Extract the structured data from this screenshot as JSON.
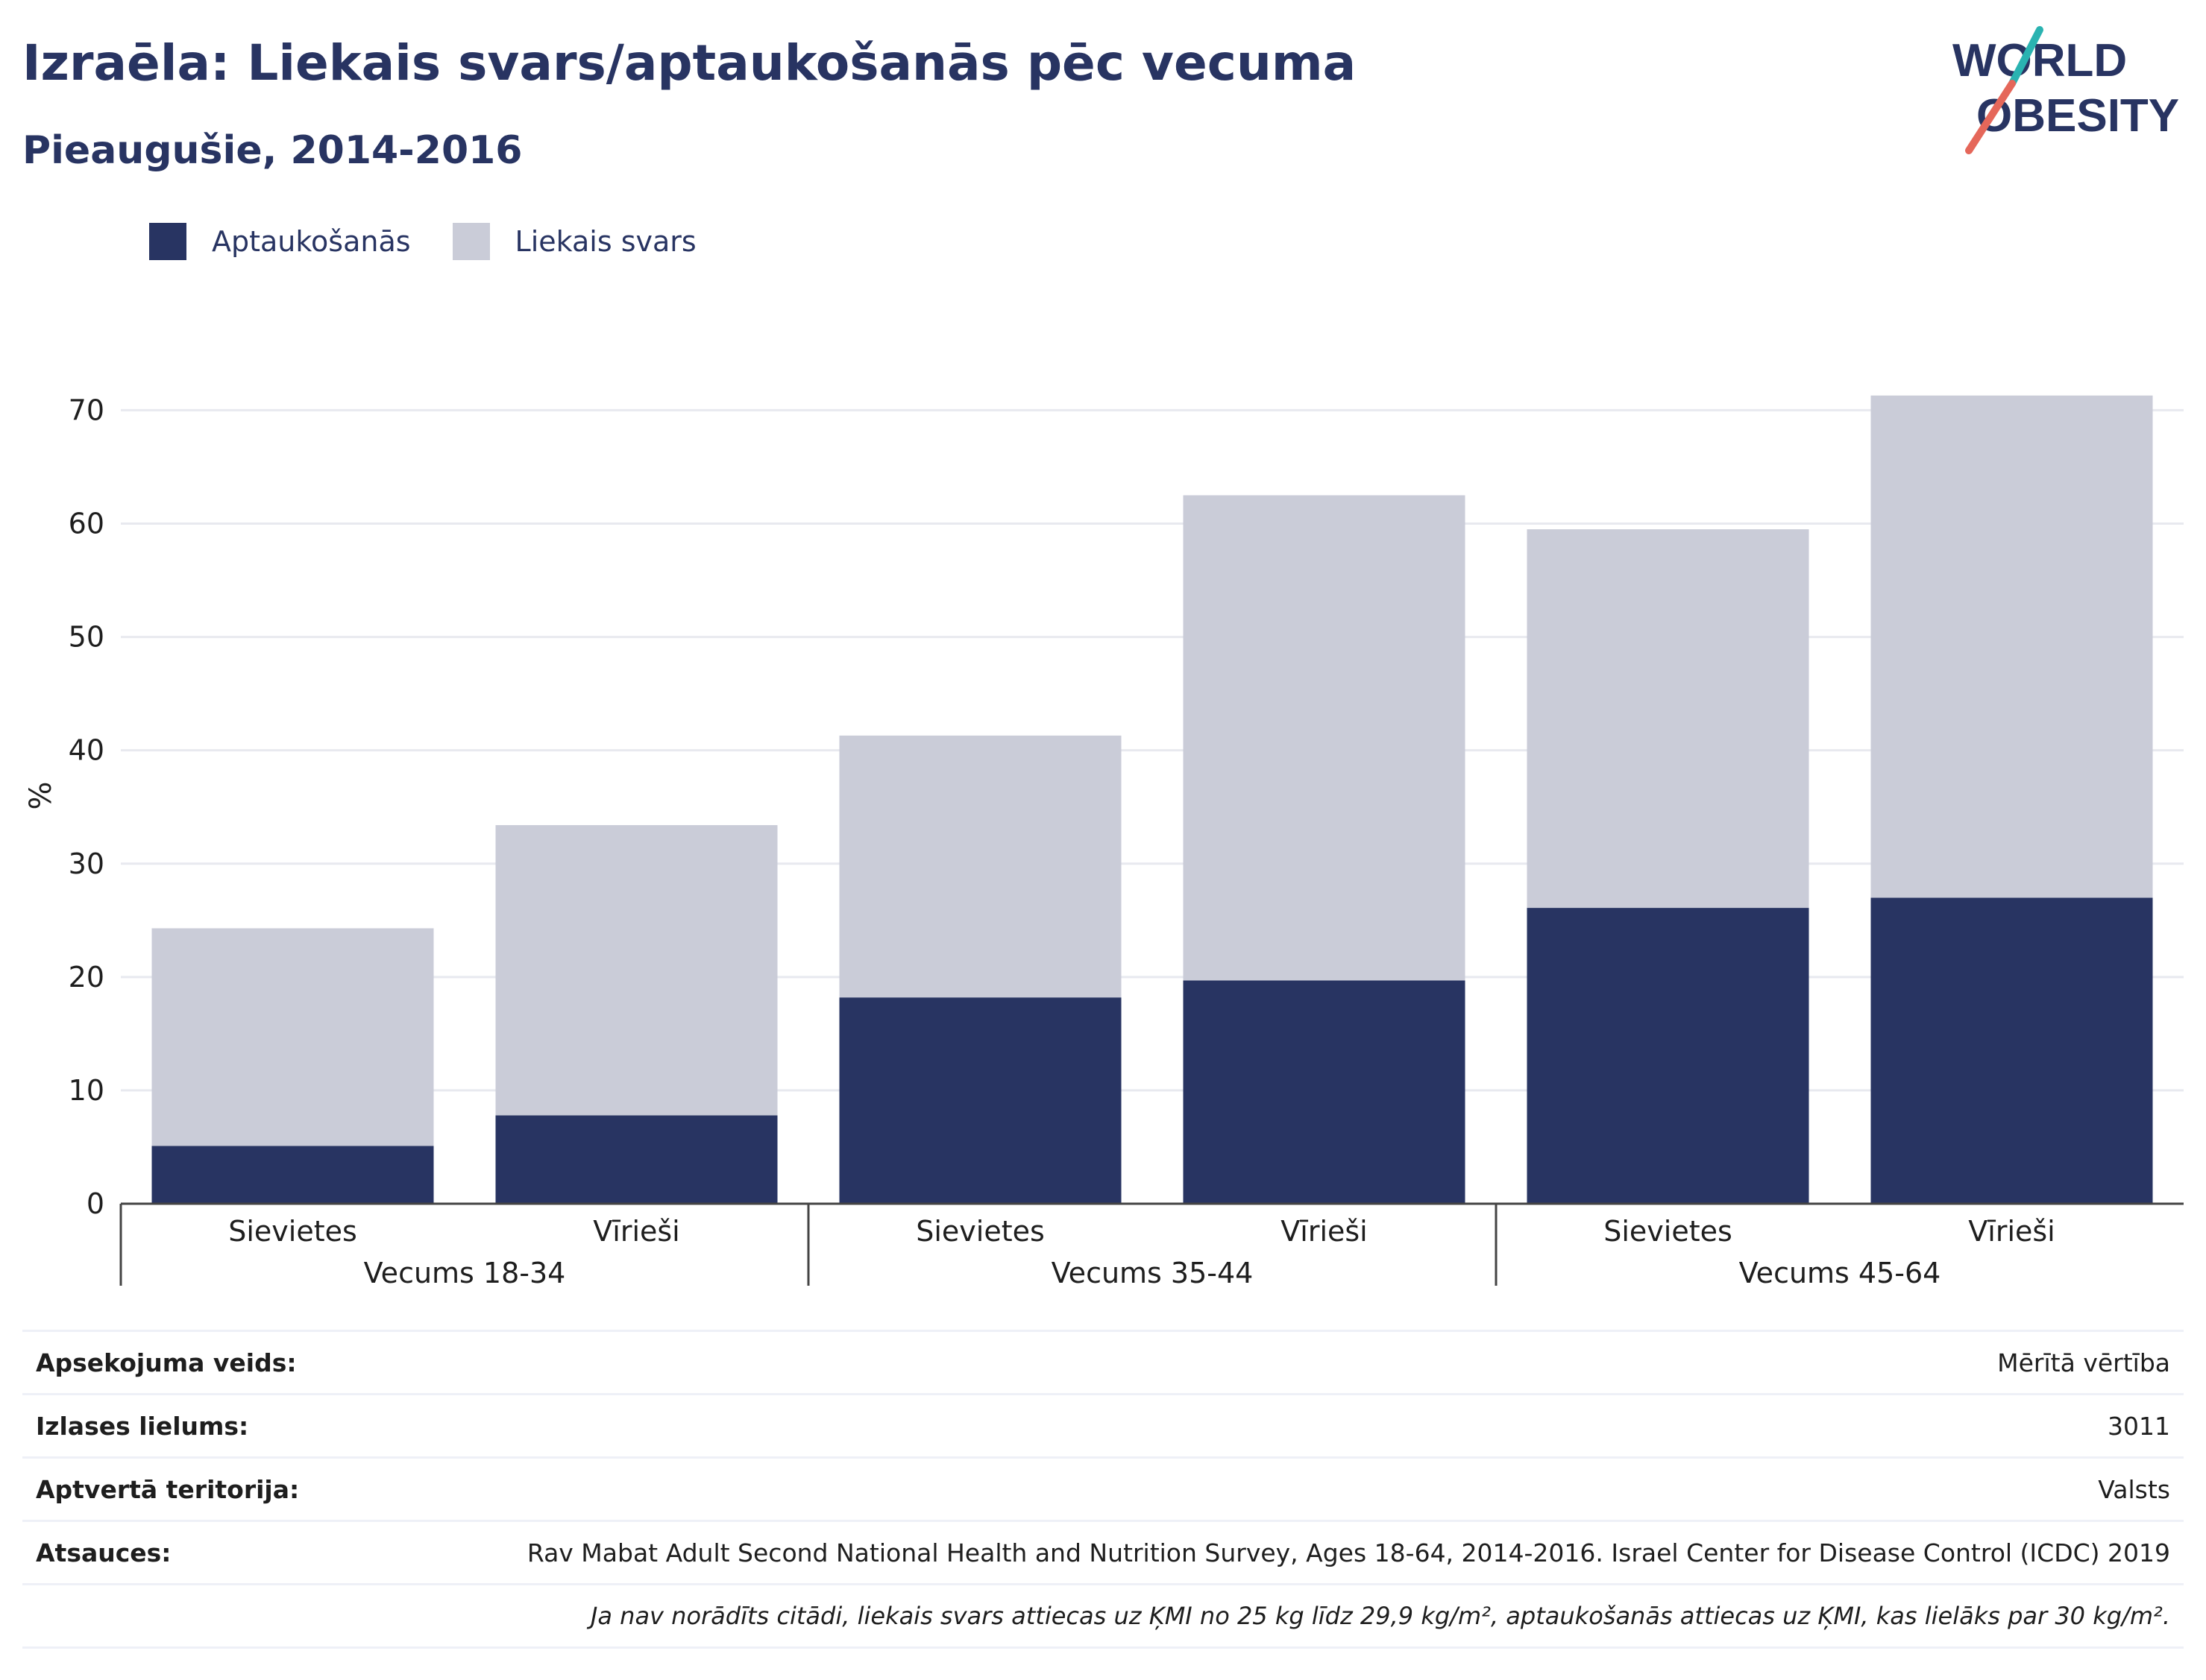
{
  "header": {
    "title": "Izraēla: Liekais svars/aptaukošanās pēc vecuma",
    "subtitle": "Pieaugušie, 2014-2016"
  },
  "logo": {
    "line1": "WORLD",
    "line2": "OBESITY"
  },
  "colors": {
    "obesity": "#283462",
    "overweight": "#caccd8",
    "grid": "#e8e9ef",
    "accent_teal": "#2ab3b1",
    "accent_coral": "#e5675a"
  },
  "legend": [
    {
      "label": "Aptaukošanās",
      "color": "#283462"
    },
    {
      "label": "Liekais svars",
      "color": "#caccd8"
    }
  ],
  "chart_data": {
    "type": "bar",
    "stacked": true,
    "ylabel": "%",
    "ylim": [
      0,
      72
    ],
    "yticks": [
      0,
      10,
      20,
      30,
      40,
      50,
      60,
      70
    ],
    "grid": true,
    "categories": [
      "Sievietes",
      "Vīrieši",
      "Sievietes",
      "Vīrieši",
      "Sievietes",
      "Vīrieši"
    ],
    "groups": [
      {
        "label": "Vecums 18-34",
        "span": [
          0,
          1
        ]
      },
      {
        "label": "Vecums 35-44",
        "span": [
          2,
          3
        ]
      },
      {
        "label": "Vecums 45-64",
        "span": [
          4,
          5
        ]
      }
    ],
    "series": [
      {
        "name": "Aptaukošanās",
        "values": [
          5.1,
          7.8,
          18.2,
          19.7,
          26.1,
          27.0
        ]
      },
      {
        "name": "Liekais svars",
        "values": [
          19.2,
          25.6,
          23.1,
          42.8,
          33.4,
          44.3
        ]
      }
    ]
  },
  "info": [
    {
      "label": "Apsekojuma veids:",
      "value": "Mērītā vērtība"
    },
    {
      "label": "Izlases lielums:",
      "value": "3011"
    },
    {
      "label": "Aptvertā teritorija:",
      "value": "Valsts"
    },
    {
      "label": "Atsauces:",
      "value": "Rav Mabat Adult Second National Health and Nutrition Survey, Ages 18-64, 2014-2016. Israel Center for Disease Control (ICDC) 2019"
    }
  ],
  "note": "Ja nav norādīts citādi, liekais svars attiecas uz ĶMI no 25 kg līdz 29,9 kg/m², aptaukošanās attiecas uz ĶMI, kas lielāks par 30 kg/m²."
}
